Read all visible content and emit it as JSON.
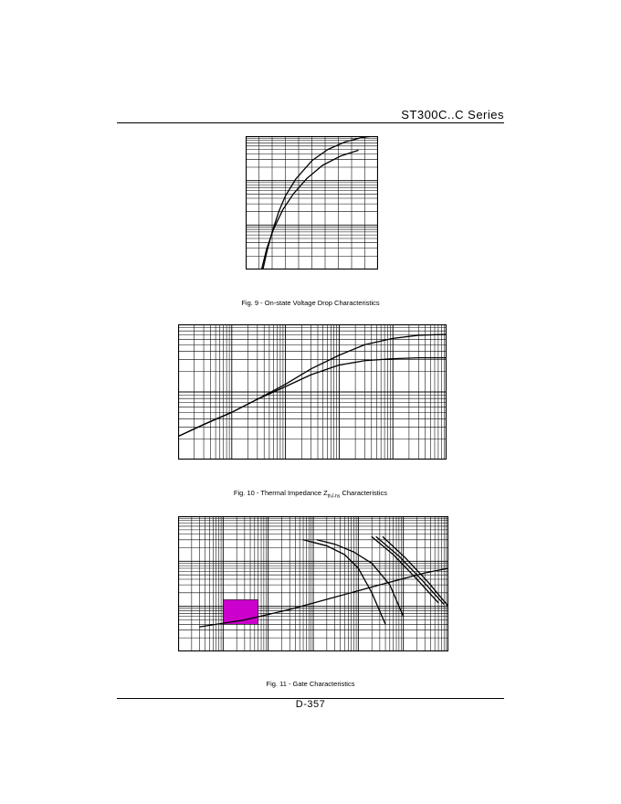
{
  "header": {
    "series_title": "ST300C..C Series"
  },
  "footer": {
    "page_number": "D-357"
  },
  "colors": {
    "ink": "#000000",
    "gate_region": "#cc00cc"
  },
  "chart_data": [
    {
      "type": "line",
      "caption": "Fig. 9 - On-state Voltage Drop Characteristics",
      "xscale": "linear",
      "yscale": "log",
      "xlim": [
        0,
        1
      ],
      "ylim": [
        1,
        1000
      ],
      "grid": true,
      "series": [
        {
          "x": [
            0.13,
            0.16,
            0.2,
            0.25,
            0.3,
            0.38,
            0.5,
            0.62,
            0.75,
            0.87,
            0.96
          ],
          "y": [
            1,
            2.5,
            7,
            20,
            45,
            110,
            280,
            500,
            740,
            920,
            1000
          ]
        },
        {
          "x": [
            0.12,
            0.16,
            0.21,
            0.28,
            0.36,
            0.46,
            0.58,
            0.72,
            0.85
          ],
          "y": [
            1,
            3,
            8,
            22,
            50,
            110,
            220,
            360,
            480
          ]
        }
      ]
    },
    {
      "type": "line",
      "caption": "Fig. 10 - Thermal Impedance Z",
      "caption_sub": "thJ-hs",
      "caption_tail": " Characteristics",
      "xscale": "log",
      "yscale": "log",
      "xlim": [
        0.001,
        100
      ],
      "ylim": [
        0.001,
        0.1
      ],
      "grid": true,
      "series": [
        {
          "x": [
            0.001,
            0.003,
            0.01,
            0.03,
            0.1,
            0.3,
            1,
            3,
            10,
            30,
            100
          ],
          "y": [
            0.0022,
            0.0033,
            0.005,
            0.0078,
            0.013,
            0.022,
            0.035,
            0.05,
            0.062,
            0.069,
            0.071
          ]
        },
        {
          "x": [
            0.001,
            0.003,
            0.01,
            0.03,
            0.1,
            0.3,
            1,
            3,
            10,
            30,
            100
          ],
          "y": [
            0.0022,
            0.0033,
            0.005,
            0.0078,
            0.012,
            0.018,
            0.025,
            0.029,
            0.031,
            0.032,
            0.032
          ]
        }
      ]
    },
    {
      "type": "line",
      "caption": "Fig. 11 - Gate Characteristics",
      "xscale": "log",
      "yscale": "log",
      "xlim": [
        0.001,
        1000
      ],
      "ylim": [
        0.1,
        100
      ],
      "grid": true,
      "series": [
        {
          "x": [
            0.003,
            0.03,
            0.3,
            3,
            30,
            300,
            1000
          ],
          "y": [
            0.35,
            0.5,
            0.85,
            1.6,
            3,
            5.5,
            7
          ]
        },
        {
          "x": [
            0.6,
            2,
            5,
            10,
            20,
            40
          ],
          "y": [
            30,
            22,
            14,
            7,
            2,
            0.4
          ]
        },
        {
          "x": [
            1.2,
            3,
            8,
            20,
            50,
            100
          ],
          "y": [
            30,
            24,
            16,
            9,
            3,
            0.6
          ]
        },
        {
          "x": [
            20,
            60,
            200,
            600
          ],
          "y": [
            35,
            14,
            4,
            1.2
          ]
        },
        {
          "x": [
            25,
            80,
            260,
            800
          ],
          "y": [
            35,
            13,
            3.8,
            1.1
          ]
        },
        {
          "x": [
            35,
            110,
            350,
            1000
          ],
          "y": [
            35,
            12,
            3.5,
            1
          ]
        }
      ],
      "regions": [
        {
          "x": [
            0.01,
            0.06
          ],
          "y": [
            0.4,
            1.4
          ]
        }
      ]
    }
  ]
}
